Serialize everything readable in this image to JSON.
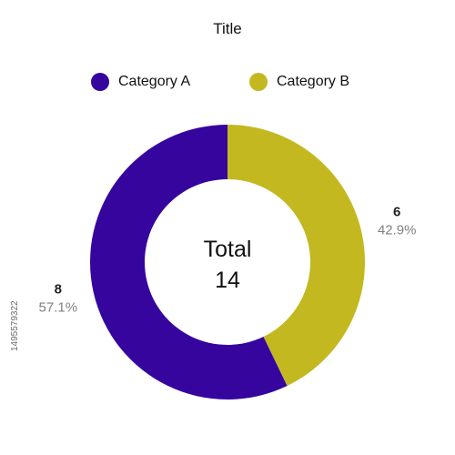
{
  "chart_data": {
    "type": "pie",
    "title": "Title",
    "center_label": "Total",
    "total": 14,
    "categories": [
      "Category A",
      "Category B"
    ],
    "values": [
      8,
      6
    ],
    "percent_labels": [
      "57.1%",
      "42.9%"
    ],
    "colors": [
      "#35059e",
      "#c3b820"
    ],
    "legend_position": "top",
    "donut": true
  },
  "watermark": {
    "id": "1495579322"
  }
}
